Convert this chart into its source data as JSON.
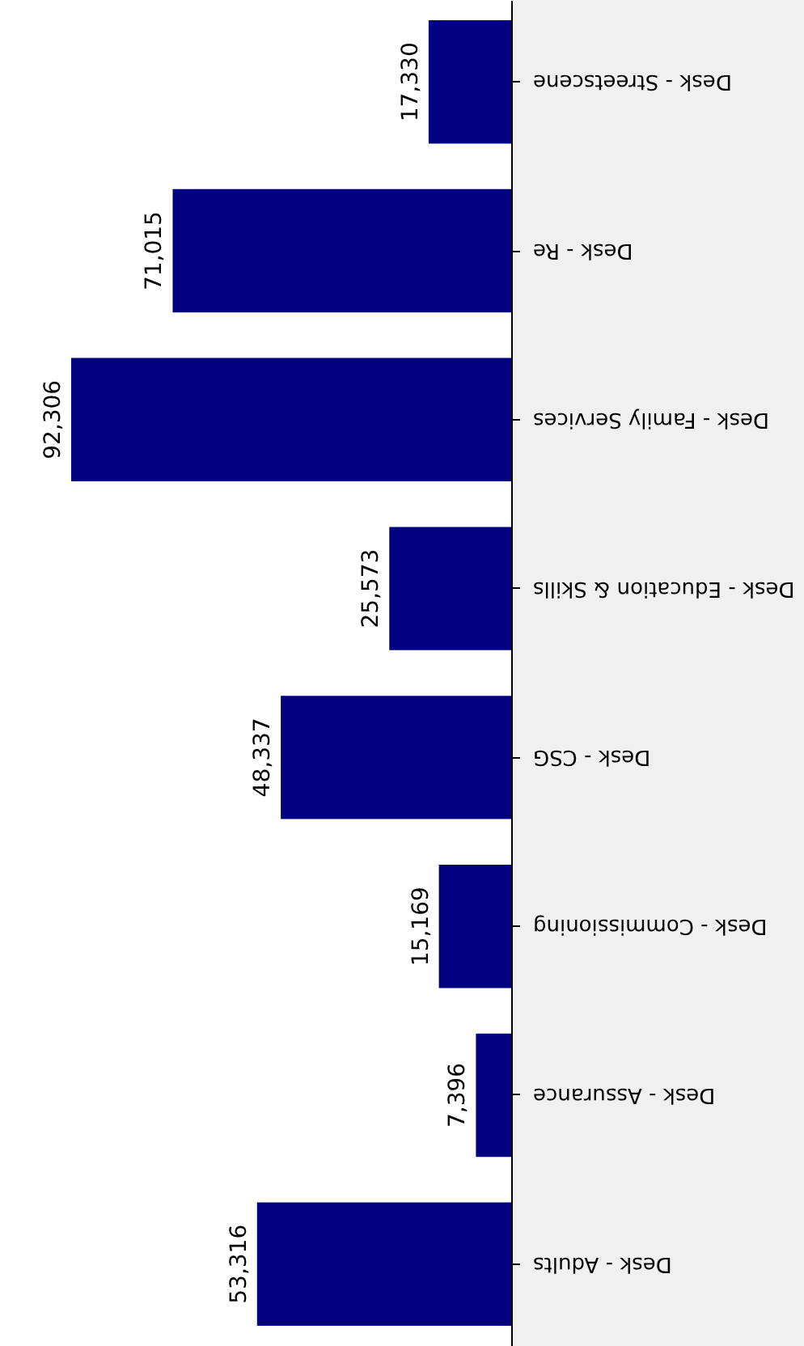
{
  "chart_data": {
    "type": "bar",
    "orientation": "horizontal",
    "categories": [
      "Desk - Streetscene",
      "Desk - Re",
      "Desk - Family Services",
      "Desk - Education & Skills",
      "Desk - CSG",
      "Desk - Commissioning",
      "Desk - Assurance",
      "Desk - Adults"
    ],
    "values": [
      17330,
      71015,
      92306,
      25573,
      48337,
      15169,
      7396,
      53316
    ],
    "value_labels": [
      "17,330",
      "71,015",
      "92,306",
      "25,573",
      "48,337",
      "15,169",
      "7,396",
      "53,316"
    ],
    "color": "#000080",
    "tick_labels": "y",
    "grid": false
  }
}
